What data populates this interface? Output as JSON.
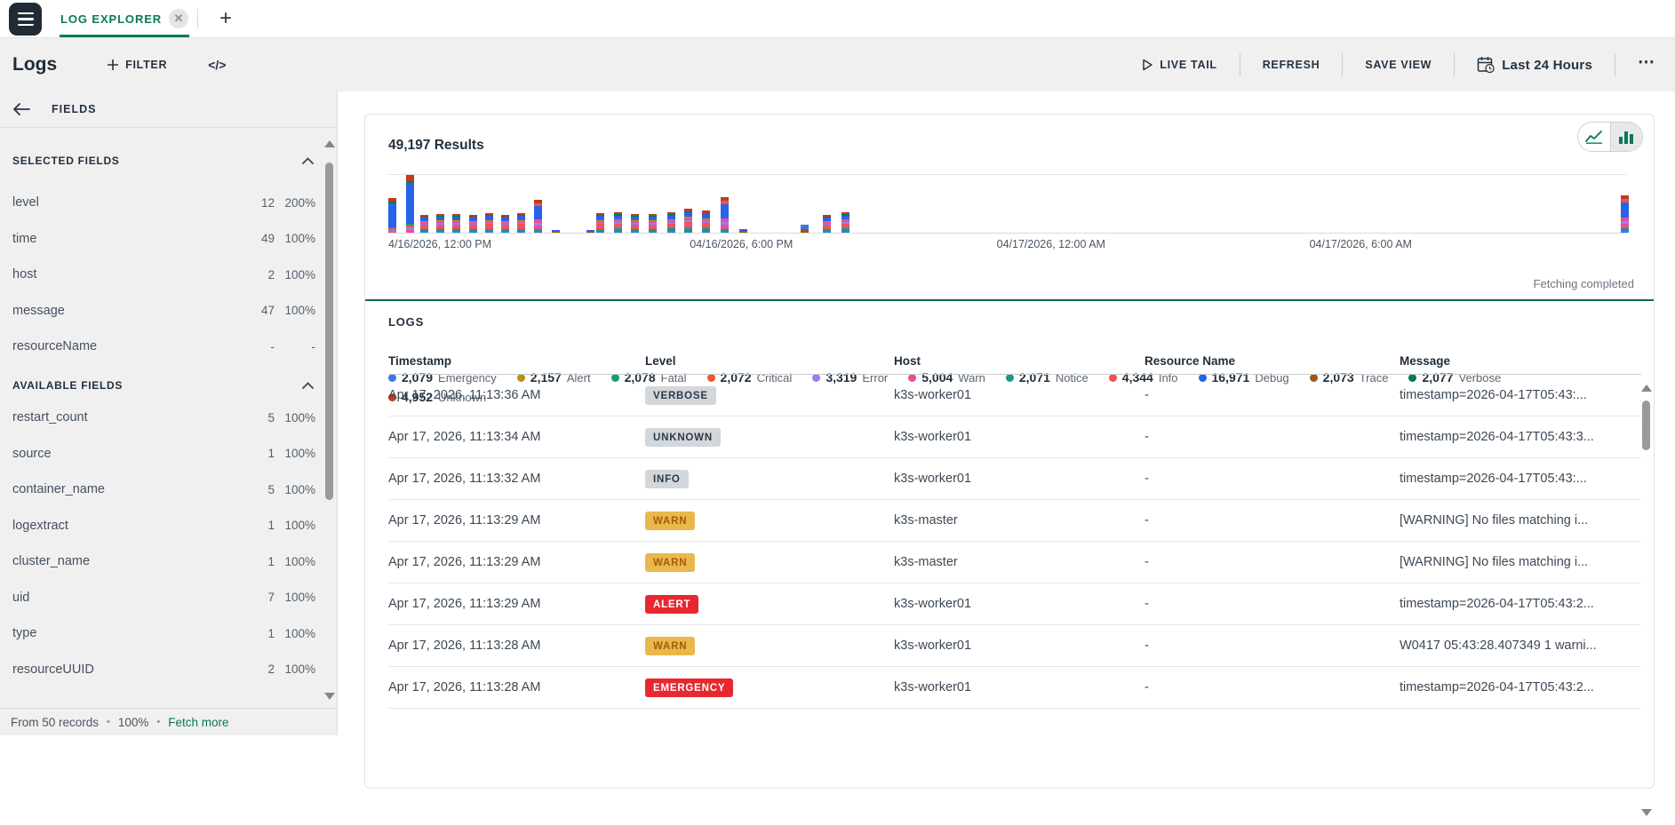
{
  "accent": "#07795c",
  "tabbar": {
    "tab_label": "LOG EXPLORER"
  },
  "toolbar": {
    "title": "Logs",
    "filter_label": "FILTER",
    "code_label": "</>",
    "live_tail": "LIVE TAIL",
    "refresh": "REFRESH",
    "save_view": "SAVE VIEW",
    "time_range": "Last 24 Hours",
    "more_label": "⋯"
  },
  "sidebar": {
    "header": "FIELDS",
    "selected_title": "SELECTED FIELDS",
    "available_title": "AVAILABLE FIELDS",
    "selected": [
      {
        "name": "level",
        "count": "12",
        "pct": "200%"
      },
      {
        "name": "time",
        "count": "49",
        "pct": "100%"
      },
      {
        "name": "host",
        "count": "2",
        "pct": "100%"
      },
      {
        "name": "message",
        "count": "47",
        "pct": "100%"
      },
      {
        "name": "resourceName",
        "count": "-",
        "pct": "-"
      }
    ],
    "available": [
      {
        "name": "restart_count",
        "count": "5",
        "pct": "100%"
      },
      {
        "name": "source",
        "count": "1",
        "pct": "100%"
      },
      {
        "name": "container_name",
        "count": "5",
        "pct": "100%"
      },
      {
        "name": "logextract",
        "count": "1",
        "pct": "100%"
      },
      {
        "name": "cluster_name",
        "count": "1",
        "pct": "100%"
      },
      {
        "name": "uid",
        "count": "7",
        "pct": "100%"
      },
      {
        "name": "type",
        "count": "1",
        "pct": "100%"
      },
      {
        "name": "resourceUUID",
        "count": "2",
        "pct": "100%"
      }
    ],
    "footer": {
      "records": "From 50 records",
      "pct": "100%",
      "fetch_more": "Fetch more"
    }
  },
  "results": {
    "count_label": "49,197 Results",
    "fetch_status": "Fetching completed"
  },
  "chart_data": {
    "type": "bar",
    "stacked": true,
    "title": "49,197 Results",
    "total_results": 49197,
    "x_ticks": [
      {
        "label": "4/16/2026, 12:00 PM",
        "pos": 0
      },
      {
        "label": "04/16/2026, 6:00 PM",
        "pos": 0.285
      },
      {
        "label": "04/17/2026, 12:00 AM",
        "pos": 0.535
      },
      {
        "label": "04/17/2026, 6:00 AM",
        "pos": 0.785
      }
    ],
    "palette": {
      "emergency": "#3b76ec",
      "alert": "#bf8f10",
      "fatal": "#13a169",
      "critical": "#f4562b",
      "error": "#9b7bf0",
      "warn": "#e84d9b",
      "notice": "#18988d",
      "info": "#ee5350",
      "debug": "#2663e8",
      "trace": "#975a1b",
      "verbose": "#0c7a4f",
      "unknown": "#bc3d20"
    },
    "series": [
      {
        "name": "Emergency",
        "value": 2079,
        "count_label": "2,079",
        "color_key": "emergency",
        "row": 1
      },
      {
        "name": "Alert",
        "value": 2157,
        "count_label": "2,157",
        "color_key": "alert",
        "row": 1
      },
      {
        "name": "Fatal",
        "value": 2078,
        "count_label": "2,078",
        "color_key": "fatal",
        "row": 1
      },
      {
        "name": "Critical",
        "value": 2072,
        "count_label": "2,072",
        "color_key": "critical",
        "row": 1
      },
      {
        "name": "Error",
        "value": 3319,
        "count_label": "3,319",
        "color_key": "error",
        "row": 1
      },
      {
        "name": "Warn",
        "value": 5004,
        "count_label": "5,004",
        "color_key": "warn",
        "row": 1
      },
      {
        "name": "Notice",
        "value": 2071,
        "count_label": "2,071",
        "color_key": "notice",
        "row": 1
      },
      {
        "name": "Info",
        "value": 4344,
        "count_label": "4,344",
        "color_key": "info",
        "row": 1
      },
      {
        "name": "Debug",
        "value": 16971,
        "count_label": "16,971",
        "color_key": "debug",
        "row": 1
      },
      {
        "name": "Trace",
        "value": 2073,
        "count_label": "2,073",
        "color_key": "trace",
        "row": 1
      },
      {
        "name": "Verbose",
        "value": 2077,
        "count_label": "2,077",
        "color_key": "verbose",
        "row": 1
      },
      {
        "name": "Unknown",
        "value": 4952,
        "count_label": "4,952",
        "color_key": "unknown",
        "row": 2
      }
    ],
    "profiles": {
      "tall": [
        [
          "warn",
          0.05
        ],
        [
          "error",
          0.04
        ],
        [
          "info",
          0.04
        ],
        [
          "fatal",
          0.03
        ],
        [
          "debug",
          0.7
        ],
        [
          "verbose",
          0.04
        ],
        [
          "unknown",
          0.1
        ]
      ],
      "striped": [
        [
          "emergency",
          0.07
        ],
        [
          "notice",
          0.06
        ],
        [
          "fatal",
          0.07
        ],
        [
          "critical",
          0.07
        ],
        [
          "warn",
          0.09
        ],
        [
          "info",
          0.08
        ],
        [
          "error",
          0.08
        ],
        [
          "warn",
          0.08
        ],
        [
          "alert",
          0.06
        ],
        [
          "debug",
          0.19
        ],
        [
          "verbose",
          0.05
        ],
        [
          "unknown",
          0.1
        ]
      ],
      "mixed": [
        [
          "emergency",
          0.06
        ],
        [
          "fatal",
          0.05
        ],
        [
          "warn",
          0.12
        ],
        [
          "error",
          0.08
        ],
        [
          "warn",
          0.1
        ],
        [
          "debug",
          0.4
        ],
        [
          "info",
          0.09
        ],
        [
          "unknown",
          0.1
        ]
      ],
      "nub": [
        [
          "trace",
          0.4
        ],
        [
          "debug",
          0.6
        ]
      ],
      "nub2": [
        [
          "trace",
          0.45
        ],
        [
          "emergency",
          0.55
        ]
      ]
    },
    "bars": [
      {
        "x": 0.0,
        "h": 0.58,
        "kind": "tall"
      },
      {
        "x": 0.014,
        "h": 0.97,
        "kind": "tall"
      },
      {
        "x": 0.026,
        "h": 0.3,
        "kind": "striped"
      },
      {
        "x": 0.039,
        "h": 0.32,
        "kind": "striped"
      },
      {
        "x": 0.052,
        "h": 0.31,
        "kind": "striped"
      },
      {
        "x": 0.065,
        "h": 0.3,
        "kind": "striped"
      },
      {
        "x": 0.078,
        "h": 0.33,
        "kind": "striped"
      },
      {
        "x": 0.091,
        "h": 0.3,
        "kind": "striped"
      },
      {
        "x": 0.104,
        "h": 0.33,
        "kind": "striped"
      },
      {
        "x": 0.118,
        "h": 0.55,
        "kind": "mixed"
      },
      {
        "x": 0.132,
        "h": 0.05,
        "kind": "nub"
      },
      {
        "x": 0.16,
        "h": 0.04,
        "kind": "nub"
      },
      {
        "x": 0.168,
        "h": 0.33,
        "kind": "striped"
      },
      {
        "x": 0.182,
        "h": 0.35,
        "kind": "striped"
      },
      {
        "x": 0.196,
        "h": 0.32,
        "kind": "striped"
      },
      {
        "x": 0.21,
        "h": 0.31,
        "kind": "striped"
      },
      {
        "x": 0.225,
        "h": 0.35,
        "kind": "striped"
      },
      {
        "x": 0.239,
        "h": 0.4,
        "kind": "striped"
      },
      {
        "x": 0.253,
        "h": 0.37,
        "kind": "striped"
      },
      {
        "x": 0.268,
        "h": 0.6,
        "kind": "mixed"
      },
      {
        "x": 0.283,
        "h": 0.06,
        "kind": "nub"
      },
      {
        "x": 0.333,
        "h": 0.13,
        "kind": "nub2"
      },
      {
        "x": 0.351,
        "h": 0.3,
        "kind": "striped"
      },
      {
        "x": 0.366,
        "h": 0.34,
        "kind": "striped"
      },
      {
        "x": 0.995,
        "h": 0.62,
        "kind": "mixed"
      }
    ]
  },
  "logs": {
    "section_title": "LOGS",
    "columns": [
      "Timestamp",
      "Level",
      "Host",
      "Resource Name",
      "Message"
    ],
    "rows": [
      {
        "timestamp": "Apr 17, 2026, 11:13:36 AM",
        "level": "VERBOSE",
        "host": "k3s-worker01",
        "resource": "-",
        "message": "timestamp=2026-04-17T05:43:..."
      },
      {
        "timestamp": "Apr 17, 2026, 11:13:34 AM",
        "level": "UNKNOWN",
        "host": "k3s-worker01",
        "resource": "-",
        "message": "timestamp=2026-04-17T05:43:3..."
      },
      {
        "timestamp": "Apr 17, 2026, 11:13:32 AM",
        "level": "INFO",
        "host": "k3s-worker01",
        "resource": "-",
        "message": "timestamp=2026-04-17T05:43:..."
      },
      {
        "timestamp": "Apr 17, 2026, 11:13:29 AM",
        "level": "WARN",
        "host": "k3s-master",
        "resource": "-",
        "message": "[WARNING] No files matching i..."
      },
      {
        "timestamp": "Apr 17, 2026, 11:13:29 AM",
        "level": "WARN",
        "host": "k3s-master",
        "resource": "-",
        "message": "[WARNING] No files matching i..."
      },
      {
        "timestamp": "Apr 17, 2026, 11:13:29 AM",
        "level": "ALERT",
        "host": "k3s-worker01",
        "resource": "-",
        "message": "timestamp=2026-04-17T05:43:2..."
      },
      {
        "timestamp": "Apr 17, 2026, 11:13:28 AM",
        "level": "WARN",
        "host": "k3s-worker01",
        "resource": "-",
        "message": "W0417 05:43:28.407349 1 warni..."
      },
      {
        "timestamp": "Apr 17, 2026, 11:13:28 AM",
        "level": "EMERGENCY",
        "host": "k3s-worker01",
        "resource": "-",
        "message": "timestamp=2026-04-17T05:43:2..."
      }
    ]
  }
}
